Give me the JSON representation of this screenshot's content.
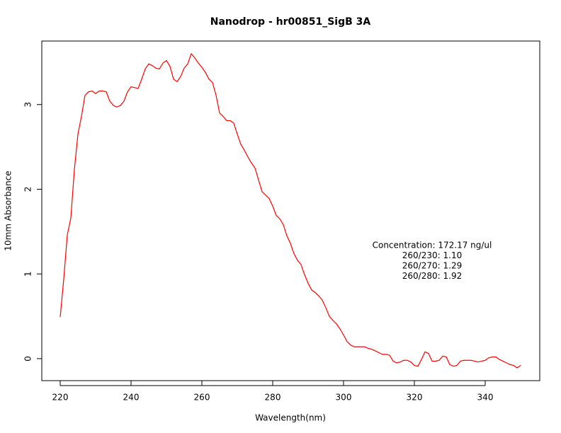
{
  "chart_data": {
    "type": "line",
    "title": "Nanodrop - hr00851_SigB 3A",
    "x_label": "Wavelength(nm)",
    "y_label": "10mm Absorbance",
    "x": [
      220,
      221,
      222,
      223,
      224,
      225,
      226,
      227,
      228,
      229,
      230,
      231,
      232,
      233,
      234,
      235,
      236,
      237,
      238,
      239,
      240,
      241,
      242,
      243,
      244,
      245,
      246,
      247,
      248,
      249,
      250,
      251,
      252,
      253,
      254,
      255,
      256,
      257,
      258,
      259,
      260,
      261,
      262,
      263,
      264,
      265,
      266,
      267,
      268,
      269,
      270,
      271,
      272,
      273,
      274,
      275,
      276,
      277,
      278,
      279,
      280,
      281,
      282,
      283,
      284,
      285,
      286,
      287,
      288,
      289,
      290,
      291,
      292,
      293,
      294,
      295,
      296,
      297,
      298,
      299,
      300,
      301,
      302,
      303,
      304,
      305,
      306,
      307,
      308,
      309,
      310,
      311,
      312,
      313,
      314,
      315,
      316,
      317,
      318,
      319,
      320,
      321,
      322,
      323,
      324,
      325,
      326,
      327,
      328,
      329,
      330,
      331,
      332,
      333,
      334,
      335,
      336,
      337,
      338,
      339,
      340,
      341,
      342,
      343,
      344,
      345,
      346,
      347,
      348,
      349,
      350
    ],
    "series": [
      {
        "name": "Absorbance",
        "color": "#ff0000",
        "values": [
          0.49,
          0.94,
          1.46,
          1.66,
          2.23,
          2.65,
          2.86,
          3.11,
          3.15,
          3.16,
          3.13,
          3.16,
          3.16,
          3.15,
          3.04,
          2.99,
          2.97,
          2.99,
          3.04,
          3.15,
          3.21,
          3.2,
          3.19,
          3.3,
          3.42,
          3.48,
          3.46,
          3.43,
          3.42,
          3.49,
          3.52,
          3.45,
          3.3,
          3.27,
          3.33,
          3.43,
          3.48,
          3.6,
          3.55,
          3.49,
          3.44,
          3.38,
          3.3,
          3.26,
          3.11,
          2.9,
          2.86,
          2.81,
          2.81,
          2.78,
          2.65,
          2.53,
          2.46,
          2.38,
          2.31,
          2.25,
          2.11,
          1.97,
          1.93,
          1.89,
          1.8,
          1.69,
          1.65,
          1.58,
          1.45,
          1.36,
          1.24,
          1.16,
          1.11,
          0.99,
          0.89,
          0.81,
          0.78,
          0.74,
          0.69,
          0.6,
          0.5,
          0.45,
          0.41,
          0.35,
          0.28,
          0.2,
          0.16,
          0.14,
          0.14,
          0.14,
          0.14,
          0.12,
          0.11,
          0.09,
          0.07,
          0.05,
          0.05,
          0.04,
          -0.03,
          -0.05,
          -0.04,
          -0.02,
          -0.02,
          -0.04,
          -0.08,
          -0.09,
          -0.01,
          0.08,
          0.06,
          -0.03,
          -0.03,
          -0.02,
          0.03,
          0.02,
          -0.07,
          -0.09,
          -0.08,
          -0.03,
          -0.02,
          -0.02,
          -0.02,
          -0.03,
          -0.04,
          -0.03,
          -0.02,
          0.01,
          0.02,
          0.02,
          -0.01,
          -0.03,
          -0.05,
          -0.07,
          -0.08,
          -0.11,
          -0.08
        ]
      }
    ],
    "xlim": [
      214.8,
      355.4
    ],
    "ylim": [
      -0.26,
      3.75
    ],
    "xticks": [
      220,
      240,
      260,
      280,
      300,
      320,
      340
    ],
    "yticks": [
      0,
      1,
      2,
      3
    ],
    "annotations": [
      "Concentration: 172.17 ng/ul",
      "260/230: 1.10",
      "260/270: 1.29",
      "260/280: 1.92"
    ]
  }
}
